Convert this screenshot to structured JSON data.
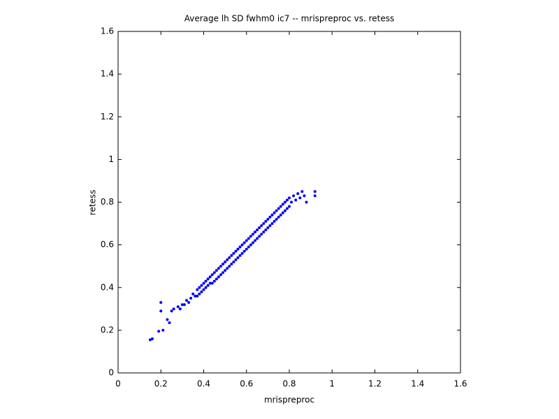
{
  "chart_data": {
    "type": "scatter",
    "title": "Average lh SD fwhm0 ic7 -- mrispreproc vs. retess",
    "x_label": "mrispreproc",
    "y_label": "retess",
    "color": "#0000ff",
    "xlim": [
      0,
      1.6
    ],
    "ylim": [
      0,
      1.6
    ],
    "xticks": [
      0,
      0.2,
      0.4,
      0.6,
      0.8,
      1,
      1.2,
      1.4,
      1.6
    ],
    "yticks": [
      0,
      0.2,
      0.4,
      0.6,
      0.8,
      1,
      1.2,
      1.4,
      1.6
    ],
    "x": [
      0.15,
      0.16,
      0.19,
      0.2,
      0.2,
      0.21,
      0.23,
      0.24,
      0.25,
      0.26,
      0.28,
      0.29,
      0.3,
      0.31,
      0.32,
      0.33,
      0.34,
      0.35,
      0.36,
      0.37,
      0.37,
      0.38,
      0.38,
      0.39,
      0.39,
      0.4,
      0.4,
      0.41,
      0.41,
      0.42,
      0.42,
      0.43,
      0.43,
      0.44,
      0.44,
      0.45,
      0.45,
      0.46,
      0.46,
      0.47,
      0.47,
      0.48,
      0.48,
      0.49,
      0.49,
      0.5,
      0.5,
      0.51,
      0.51,
      0.52,
      0.52,
      0.53,
      0.53,
      0.54,
      0.54,
      0.55,
      0.55,
      0.56,
      0.56,
      0.57,
      0.57,
      0.58,
      0.58,
      0.59,
      0.59,
      0.6,
      0.6,
      0.61,
      0.61,
      0.62,
      0.62,
      0.63,
      0.63,
      0.64,
      0.64,
      0.65,
      0.65,
      0.66,
      0.66,
      0.67,
      0.67,
      0.68,
      0.68,
      0.69,
      0.69,
      0.7,
      0.7,
      0.71,
      0.71,
      0.72,
      0.72,
      0.73,
      0.73,
      0.74,
      0.74,
      0.75,
      0.75,
      0.76,
      0.76,
      0.77,
      0.77,
      0.78,
      0.78,
      0.79,
      0.79,
      0.8,
      0.8,
      0.81,
      0.82,
      0.83,
      0.84,
      0.85,
      0.86,
      0.87,
      0.88,
      0.92,
      0.92
    ],
    "values": [
      0.155,
      0.16,
      0.195,
      0.33,
      0.29,
      0.2,
      0.25,
      0.235,
      0.29,
      0.3,
      0.31,
      0.3,
      0.32,
      0.32,
      0.34,
      0.33,
      0.35,
      0.37,
      0.36,
      0.39,
      0.36,
      0.4,
      0.37,
      0.41,
      0.38,
      0.42,
      0.39,
      0.43,
      0.4,
      0.44,
      0.41,
      0.45,
      0.42,
      0.46,
      0.42,
      0.47,
      0.43,
      0.48,
      0.44,
      0.49,
      0.45,
      0.5,
      0.46,
      0.51,
      0.47,
      0.52,
      0.48,
      0.53,
      0.49,
      0.54,
      0.5,
      0.55,
      0.51,
      0.56,
      0.52,
      0.57,
      0.53,
      0.58,
      0.54,
      0.59,
      0.55,
      0.6,
      0.56,
      0.61,
      0.57,
      0.62,
      0.58,
      0.63,
      0.59,
      0.64,
      0.6,
      0.65,
      0.61,
      0.66,
      0.62,
      0.67,
      0.63,
      0.68,
      0.64,
      0.69,
      0.65,
      0.7,
      0.66,
      0.71,
      0.67,
      0.72,
      0.68,
      0.73,
      0.69,
      0.74,
      0.7,
      0.75,
      0.71,
      0.76,
      0.72,
      0.77,
      0.73,
      0.78,
      0.74,
      0.79,
      0.75,
      0.8,
      0.76,
      0.81,
      0.77,
      0.82,
      0.78,
      0.8,
      0.83,
      0.81,
      0.84,
      0.82,
      0.85,
      0.83,
      0.8,
      0.85,
      0.83
    ]
  }
}
